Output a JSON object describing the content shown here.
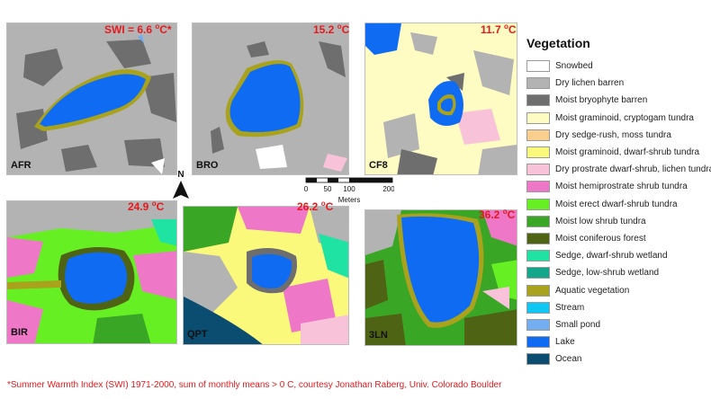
{
  "panels": [
    {
      "site": "AFR",
      "temp": "SWI = 6.6 ",
      "deg": "o",
      "unit": "C*"
    },
    {
      "site": "BRO",
      "temp": "15.2 ",
      "deg": "o",
      "unit": "C"
    },
    {
      "site": "CF8",
      "temp": "11.7 ",
      "deg": "o",
      "unit": "C"
    },
    {
      "site": "BIR",
      "temp": "24.9 ",
      "deg": "o",
      "unit": "C"
    },
    {
      "site": "QPT",
      "temp": "26.2 ",
      "deg": "o",
      "unit": "C"
    },
    {
      "site": "3LN",
      "temp": "36.2 ",
      "deg": "o",
      "unit": "C"
    }
  ],
  "north_label": "N",
  "scale": {
    "ticks": [
      "0",
      "50",
      "100",
      "200"
    ],
    "unit": "Meters"
  },
  "legend": {
    "title": "Vegetation",
    "items": [
      {
        "label": "Snowbed",
        "color": "#ffffff"
      },
      {
        "label": "Dry lichen barren",
        "color": "#b3b3b3"
      },
      {
        "label": "Moist bryophyte barren",
        "color": "#6e6e6e"
      },
      {
        "label": "Moist graminoid, cryptogam tundra",
        "color": "#fefbc3"
      },
      {
        "label": "Dry sedge-rush, moss tundra",
        "color": "#f9cf8e"
      },
      {
        "label": "Moist graminoid, dwarf-shrub tundra",
        "color": "#fbf97b"
      },
      {
        "label": "Dry prostrate dwarf-shrub, lichen tundra",
        "color": "#f8c2d9"
      },
      {
        "label": "Moist hemiprostrate shrub tundra",
        "color": "#ef77c8"
      },
      {
        "label": "Moist erect dwarf-shrub tundra",
        "color": "#66f024"
      },
      {
        "label": "Moist low shrub tundra",
        "color": "#3aa625"
      },
      {
        "label": "Moist coniferous forest",
        "color": "#4e6314"
      },
      {
        "label": "Sedge, dwarf-shrub wetland",
        "color": "#1fe3a3"
      },
      {
        "label": "Sedge, low-shrub wetland",
        "color": "#13a68a"
      },
      {
        "label": "Aquatic vegetation",
        "color": "#a9a21d"
      },
      {
        "label": "Stream",
        "color": "#10c6f2"
      },
      {
        "label": "Small pond",
        "color": "#72aef0"
      },
      {
        "label": "Lake",
        "color": "#0f6cf2"
      },
      {
        "label": "Ocean",
        "color": "#0a4d70"
      }
    ]
  },
  "footnote": "*Summer Warmth Index (SWI) 1971-2000, sum of monthly means > 0 C, courtesy Jonathan Raberg, Univ. Colorado Boulder"
}
